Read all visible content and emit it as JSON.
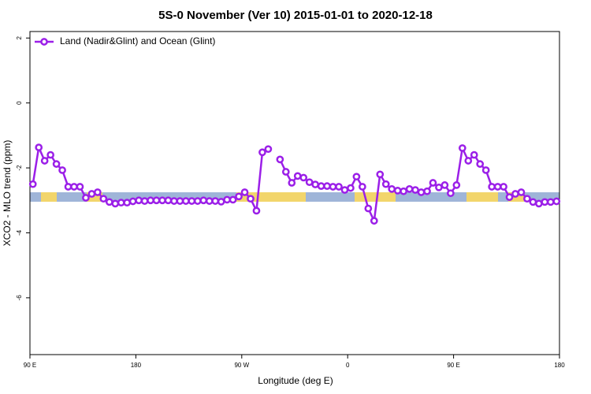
{
  "chart_data": {
    "type": "line",
    "title": "5S-0 November (Ver 10)   2015-01-01 to 2020-12-18",
    "x_label": "Longitude (deg E)",
    "y_label": "XCO2 - MLO trend (ppm)",
    "xlim": [
      90,
      540
    ],
    "ylim": [
      -7.75,
      2.2
    ],
    "xticks": [
      {
        "value": 90,
        "label": "90 E"
      },
      180,
      {
        "value": 270,
        "label": "90 W"
      },
      {
        "value": 360,
        "label": "0"
      },
      {
        "value": 450,
        "label": "90 E"
      },
      {
        "value": 540,
        "label": "180"
      }
    ],
    "yticks": [
      -6,
      -4,
      -2,
      0,
      2
    ],
    "legend": "top-left",
    "x": [
      92.5,
      97.5,
      102.5,
      107.5,
      112.5,
      117.5,
      122.5,
      127.5,
      132.5,
      137.5,
      142.5,
      147.5,
      152.5,
      157.5,
      162.5,
      167.5,
      172.5,
      177.5,
      182.5,
      187.5,
      192.5,
      197.5,
      202.5,
      207.5,
      212.5,
      217.5,
      222.5,
      227.5,
      232.5,
      237.5,
      242.5,
      247.5,
      252.5,
      257.5,
      262.5,
      267.5,
      272.5,
      277.5,
      282.5,
      287.5,
      292.5,
      297.5,
      302.5,
      307.5,
      312.5,
      317.5,
      322.5,
      327.5,
      332.5,
      337.5,
      342.5,
      347.5,
      352.5,
      357.5,
      362.5,
      367.5,
      372.5,
      377.5,
      382.5,
      387.5,
      392.5,
      397.5,
      402.5,
      407.5,
      412.5,
      417.5,
      422.5,
      427.5,
      432.5,
      437.5,
      442.5,
      447.5,
      452.5,
      457.5,
      462.5,
      467.5,
      472.5,
      477.5,
      482.5,
      487.5,
      492.5,
      497.5,
      502.5,
      507.5,
      512.5,
      517.5,
      522.5,
      527.5,
      532.5,
      537.5
    ],
    "series": [
      {
        "name": "Land (Nadir&Glint) and Ocean (Glint)",
        "color": "#9b1fe8",
        "values": [
          -2.5,
          -1.37,
          -1.78,
          -1.6,
          -1.88,
          -2.07,
          -2.58,
          -2.58,
          -2.58,
          -2.92,
          -2.8,
          -2.75,
          -2.95,
          -3.05,
          -3.1,
          -3.07,
          -3.07,
          -3.03,
          -3.0,
          -3.02,
          -3.0,
          -3.0,
          -3.0,
          -3.0,
          -3.02,
          -3.02,
          -3.02,
          -3.02,
          -3.02,
          -3.0,
          -3.02,
          -3.02,
          -3.04,
          -2.98,
          -2.98,
          -2.88,
          -2.75,
          -2.95,
          -3.32,
          -1.52,
          -1.42,
          null,
          -1.74,
          -2.12,
          -2.46,
          -2.25,
          -2.3,
          -2.44,
          -2.51,
          -2.56,
          -2.56,
          -2.58,
          -2.58,
          -2.68,
          -2.62,
          -2.27,
          -2.58,
          -3.25,
          -3.63,
          -2.2,
          -2.5,
          -2.65,
          -2.7,
          -2.72,
          -2.65,
          -2.68,
          -2.75,
          -2.72,
          -2.46,
          -2.6,
          -2.53,
          -2.78,
          -2.53,
          -1.39,
          -1.78,
          -1.6,
          -1.88,
          -2.07,
          -2.58,
          -2.58,
          -2.58,
          -2.9,
          -2.8,
          -2.75,
          -2.95,
          -3.05,
          -3.1,
          -3.05,
          -3.05,
          -3.03
        ]
      }
    ]
  }
}
